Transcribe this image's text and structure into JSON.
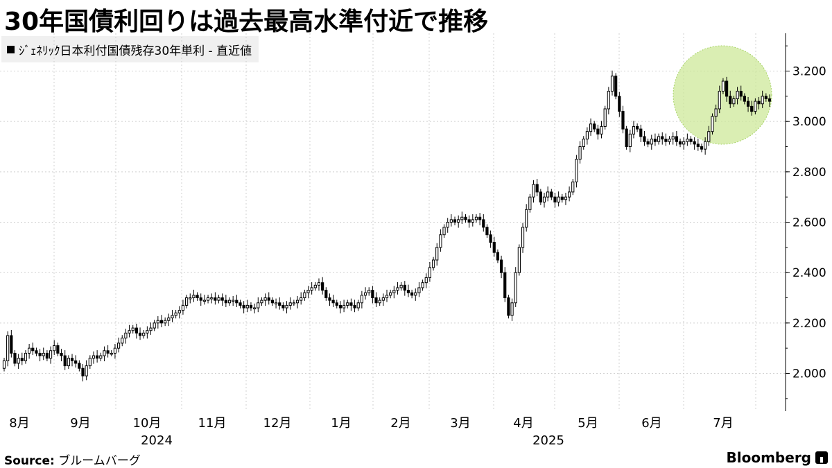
{
  "title": "30年国債利回りは過去最高水準付近で推移",
  "chart_data": {
    "type": "candlestick",
    "series": [
      {
        "name": "ｼﾞｪﾈﾘｯｸ日本利付国債残存30年単利 - 直近値",
        "color": "#000000"
      }
    ],
    "x_tick_labels": [
      "8月",
      "9月",
      "10月",
      "11月",
      "12月",
      "1月",
      "2月",
      "3月",
      "4月",
      "5月",
      "6月",
      "7月"
    ],
    "year_labels": [
      "2024",
      "2025"
    ],
    "y_ticks": [
      "2.000",
      "2.200",
      "2.400",
      "2.600",
      "2.800",
      "3.000",
      "3.200"
    ],
    "ylim": [
      1.85,
      3.35
    ],
    "grid": true,
    "legend_position": "top-left",
    "highlight_color": "#cde89a",
    "closes": [
      2.05,
      2.15,
      2.08,
      2.04,
      2.06,
      2.05,
      2.08,
      2.1,
      2.09,
      2.08,
      2.07,
      2.08,
      2.06,
      2.09,
      2.11,
      2.08,
      2.07,
      2.03,
      2.06,
      2.05,
      2.04,
      2.02,
      1.99,
      2.03,
      2.06,
      2.07,
      2.06,
      2.07,
      2.09,
      2.08,
      2.08,
      2.1,
      2.12,
      2.14,
      2.16,
      2.17,
      2.18,
      2.16,
      2.15,
      2.16,
      2.17,
      2.18,
      2.2,
      2.21,
      2.2,
      2.21,
      2.22,
      2.23,
      2.24,
      2.25,
      2.27,
      2.3,
      2.3,
      2.31,
      2.3,
      2.29,
      2.29,
      2.3,
      2.3,
      2.29,
      2.3,
      2.29,
      2.28,
      2.29,
      2.29,
      2.28,
      2.27,
      2.26,
      2.27,
      2.26,
      2.26,
      2.28,
      2.29,
      2.3,
      2.29,
      2.28,
      2.28,
      2.27,
      2.26,
      2.27,
      2.28,
      2.28,
      2.29,
      2.3,
      2.32,
      2.33,
      2.34,
      2.35,
      2.36,
      2.33,
      2.3,
      2.29,
      2.28,
      2.27,
      2.26,
      2.27,
      2.28,
      2.27,
      2.26,
      2.28,
      2.31,
      2.32,
      2.33,
      2.3,
      2.28,
      2.29,
      2.3,
      2.31,
      2.32,
      2.33,
      2.34,
      2.35,
      2.33,
      2.32,
      2.31,
      2.32,
      2.34,
      2.36,
      2.38,
      2.42,
      2.45,
      2.5,
      2.55,
      2.58,
      2.6,
      2.61,
      2.6,
      2.61,
      2.62,
      2.61,
      2.6,
      2.61,
      2.62,
      2.61,
      2.58,
      2.55,
      2.52,
      2.48,
      2.45,
      2.4,
      2.3,
      2.23,
      2.28,
      2.4,
      2.5,
      2.58,
      2.65,
      2.7,
      2.75,
      2.72,
      2.68,
      2.7,
      2.72,
      2.7,
      2.68,
      2.7,
      2.69,
      2.7,
      2.72,
      2.76,
      2.85,
      2.9,
      2.93,
      2.96,
      2.99,
      2.97,
      2.95,
      2.98,
      3.05,
      3.12,
      3.18,
      3.1,
      3.04,
      2.97,
      2.9,
      2.95,
      2.98,
      2.97,
      2.94,
      2.92,
      2.91,
      2.93,
      2.92,
      2.94,
      2.93,
      2.92,
      2.93,
      2.94,
      2.92,
      2.91,
      2.92,
      2.93,
      2.92,
      2.91,
      2.9,
      2.89,
      2.92,
      2.96,
      3.02,
      3.05,
      3.12,
      3.16,
      3.1,
      3.07,
      3.09,
      3.12,
      3.1,
      3.08,
      3.06,
      3.04,
      3.08,
      3.07,
      3.1,
      3.09,
      3.08
    ]
  },
  "source": {
    "label": "Source:",
    "text": "ブルームバーグ"
  },
  "brand": {
    "name": "Bloomberg"
  }
}
